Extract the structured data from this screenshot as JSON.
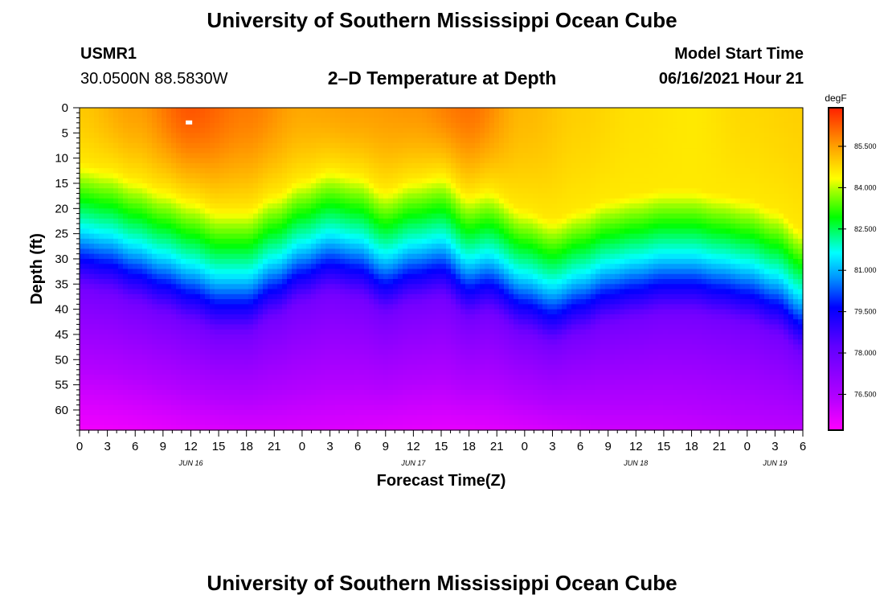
{
  "page": {
    "title_top": "University of Southern Mississippi Ocean Cube",
    "title_bottom": "University of Southern Mississippi Ocean Cube",
    "station_id": "USMR1",
    "coordinates": "30.0500N  88.5830W",
    "model_start_label": "Model Start Time",
    "model_start_value": "06/16/2021 Hour 21"
  },
  "chart_data": {
    "type": "heatmap",
    "title": "2–D Temperature at Depth",
    "xlabel": "Forecast Time(Z)",
    "ylabel": "Depth (ft)",
    "x_range_hours": [
      0,
      78
    ],
    "x_tick_labels": [
      "0",
      "3",
      "6",
      "9",
      "12",
      "15",
      "18",
      "21",
      "0",
      "3",
      "6",
      "9",
      "12",
      "15",
      "18",
      "21",
      "0",
      "3",
      "6",
      "9",
      "12",
      "15",
      "18",
      "21",
      "0",
      "3",
      "6"
    ],
    "x_day_labels": [
      {
        "label": "JUN 16",
        "hour": 12
      },
      {
        "label": "JUN 17",
        "hour": 36
      },
      {
        "label": "JUN 18",
        "hour": 60
      },
      {
        "label": "JUN 19",
        "hour": 75
      }
    ],
    "y_range_ft": [
      0,
      64
    ],
    "y_ticks": [
      0,
      5,
      10,
      15,
      20,
      25,
      30,
      35,
      40,
      45,
      50,
      55,
      60
    ],
    "colorbar": {
      "unit": "degF",
      "range": [
        75.2,
        86.9
      ],
      "tick_labels": [
        "85.500",
        "84.000",
        "82.500",
        "81.000",
        "79.500",
        "78.000",
        "76.500"
      ]
    },
    "surface_temperature_degF": [
      {
        "hour": 0,
        "value": 85.0
      },
      {
        "hour": 6,
        "value": 85.5
      },
      {
        "hour": 12,
        "value": 86.3
      },
      {
        "hour": 18,
        "value": 85.9
      },
      {
        "hour": 24,
        "value": 85.4
      },
      {
        "hour": 30,
        "value": 85.5
      },
      {
        "hour": 36,
        "value": 85.6
      },
      {
        "hour": 42,
        "value": 86.0
      },
      {
        "hour": 48,
        "value": 85.2
      },
      {
        "hour": 54,
        "value": 84.9
      },
      {
        "hour": 60,
        "value": 84.7
      },
      {
        "hour": 66,
        "value": 84.6
      },
      {
        "hour": 72,
        "value": 84.8
      },
      {
        "hour": 78,
        "value": 84.9
      }
    ],
    "thermocline_mid_depth_ft": [
      {
        "hour": 0,
        "value": 24
      },
      {
        "hour": 3,
        "value": 25
      },
      {
        "hour": 6,
        "value": 27
      },
      {
        "hour": 9,
        "value": 29
      },
      {
        "hour": 12,
        "value": 31
      },
      {
        "hour": 15,
        "value": 33
      },
      {
        "hour": 18,
        "value": 33
      },
      {
        "hour": 21,
        "value": 30
      },
      {
        "hour": 24,
        "value": 27
      },
      {
        "hour": 27,
        "value": 25
      },
      {
        "hour": 30,
        "value": 26
      },
      {
        "hour": 33,
        "value": 29
      },
      {
        "hour": 36,
        "value": 27
      },
      {
        "hour": 39,
        "value": 26
      },
      {
        "hour": 42,
        "value": 30
      },
      {
        "hour": 44,
        "value": 29
      },
      {
        "hour": 48,
        "value": 33
      },
      {
        "hour": 51,
        "value": 35
      },
      {
        "hour": 54,
        "value": 33
      },
      {
        "hour": 57,
        "value": 31
      },
      {
        "hour": 60,
        "value": 30
      },
      {
        "hour": 63,
        "value": 29
      },
      {
        "hour": 66,
        "value": 29
      },
      {
        "hour": 69,
        "value": 30
      },
      {
        "hour": 72,
        "value": 31
      },
      {
        "hour": 75,
        "value": 33
      },
      {
        "hour": 78,
        "value": 37
      }
    ],
    "deep_band_temperature_degF": {
      "depth_ft": 47,
      "value": 77.8
    },
    "bottom_temperature_degF": [
      {
        "hour": 0,
        "value": 75.4
      },
      {
        "hour": 20,
        "value": 75.8
      },
      {
        "hour": 40,
        "value": 75.6
      },
      {
        "hour": 60,
        "value": 76.0
      },
      {
        "hour": 78,
        "value": 76.2
      }
    ]
  }
}
